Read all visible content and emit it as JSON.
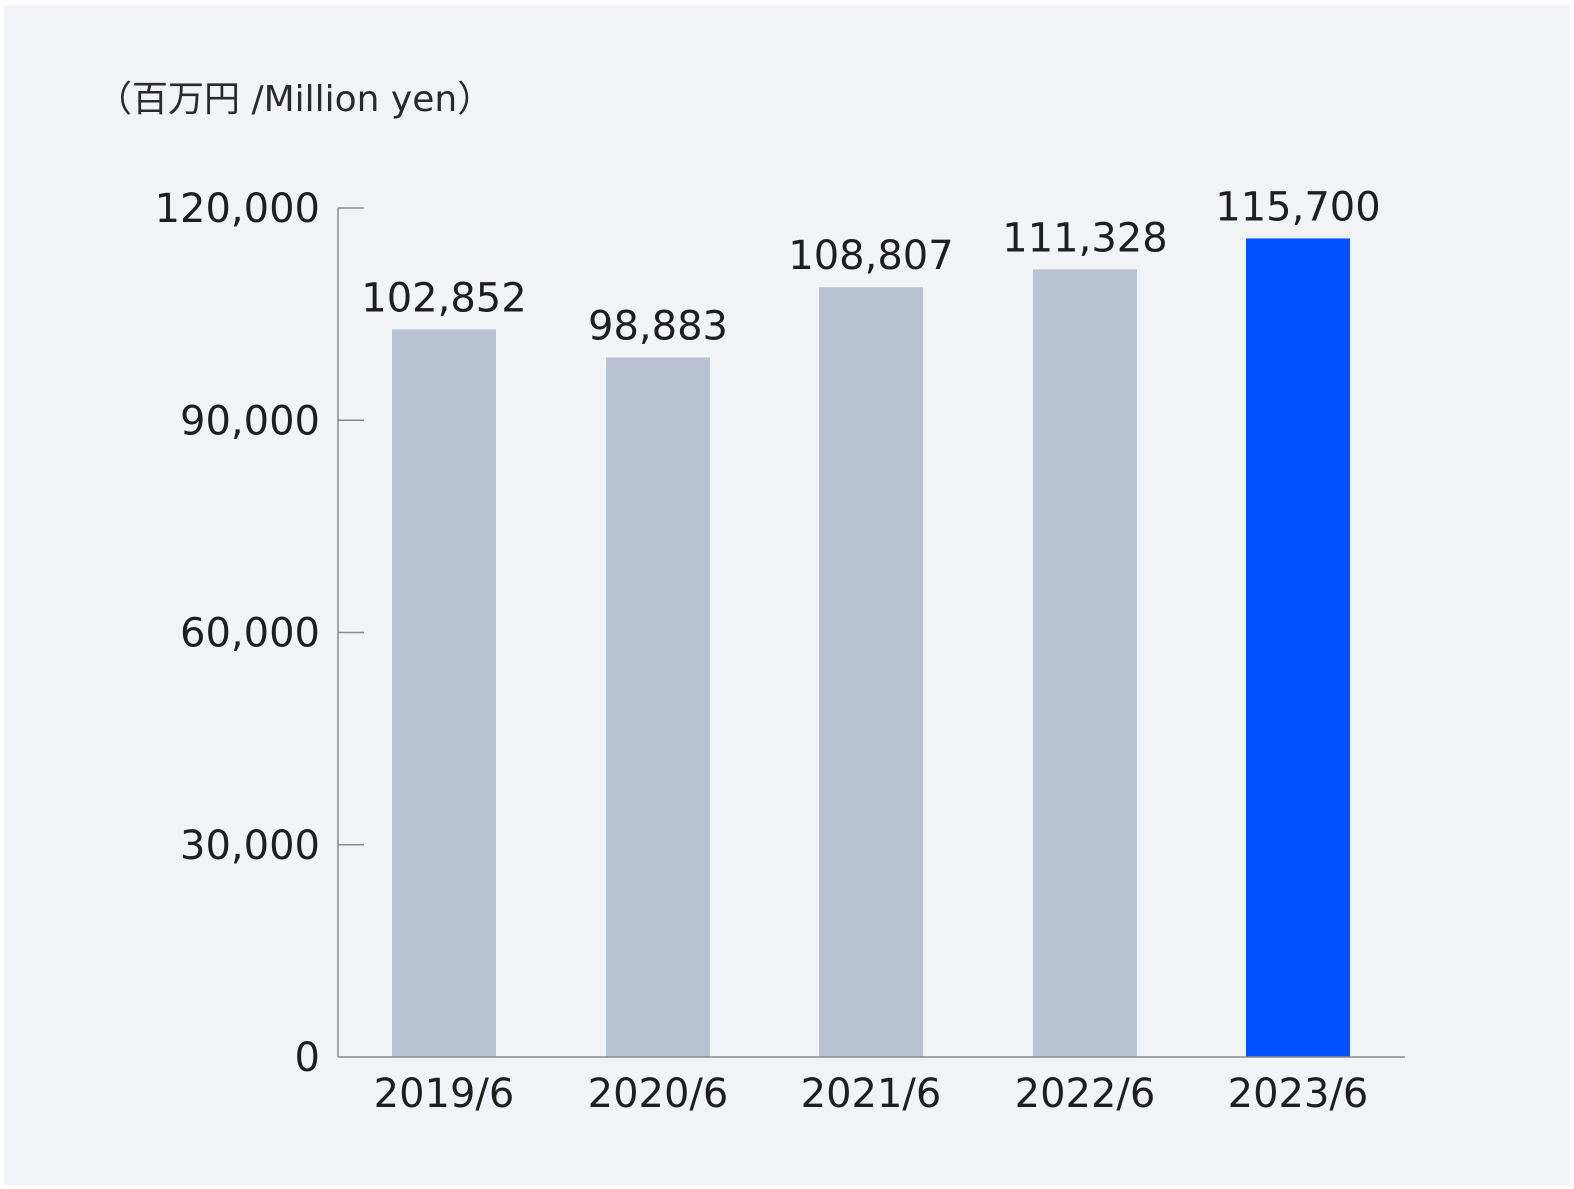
{
  "chart_data": {
    "type": "bar",
    "unit_label": "（百万円 /Million yen）",
    "categories": [
      "2019/6",
      "2020/6",
      "2021/6",
      "2022/6",
      "2023/6"
    ],
    "values": [
      102852,
      98883,
      108807,
      111328,
      115700
    ],
    "value_labels": [
      "102,852",
      "98,883",
      "108,807",
      "111,328",
      "115,700"
    ],
    "ylim": [
      0,
      120000
    ],
    "yticks": [
      0,
      30000,
      60000,
      90000,
      120000
    ],
    "ytick_labels": [
      "0",
      "30,000",
      "60,000",
      "90,000",
      "120,000"
    ],
    "grid": false,
    "legend": "none",
    "colors": {
      "default_bar": "#b8c2d2",
      "highlight_bar": "#0050ff",
      "axis": "#8a8a8a",
      "background": "#f2f3f7"
    },
    "highlight_index": 4
  }
}
